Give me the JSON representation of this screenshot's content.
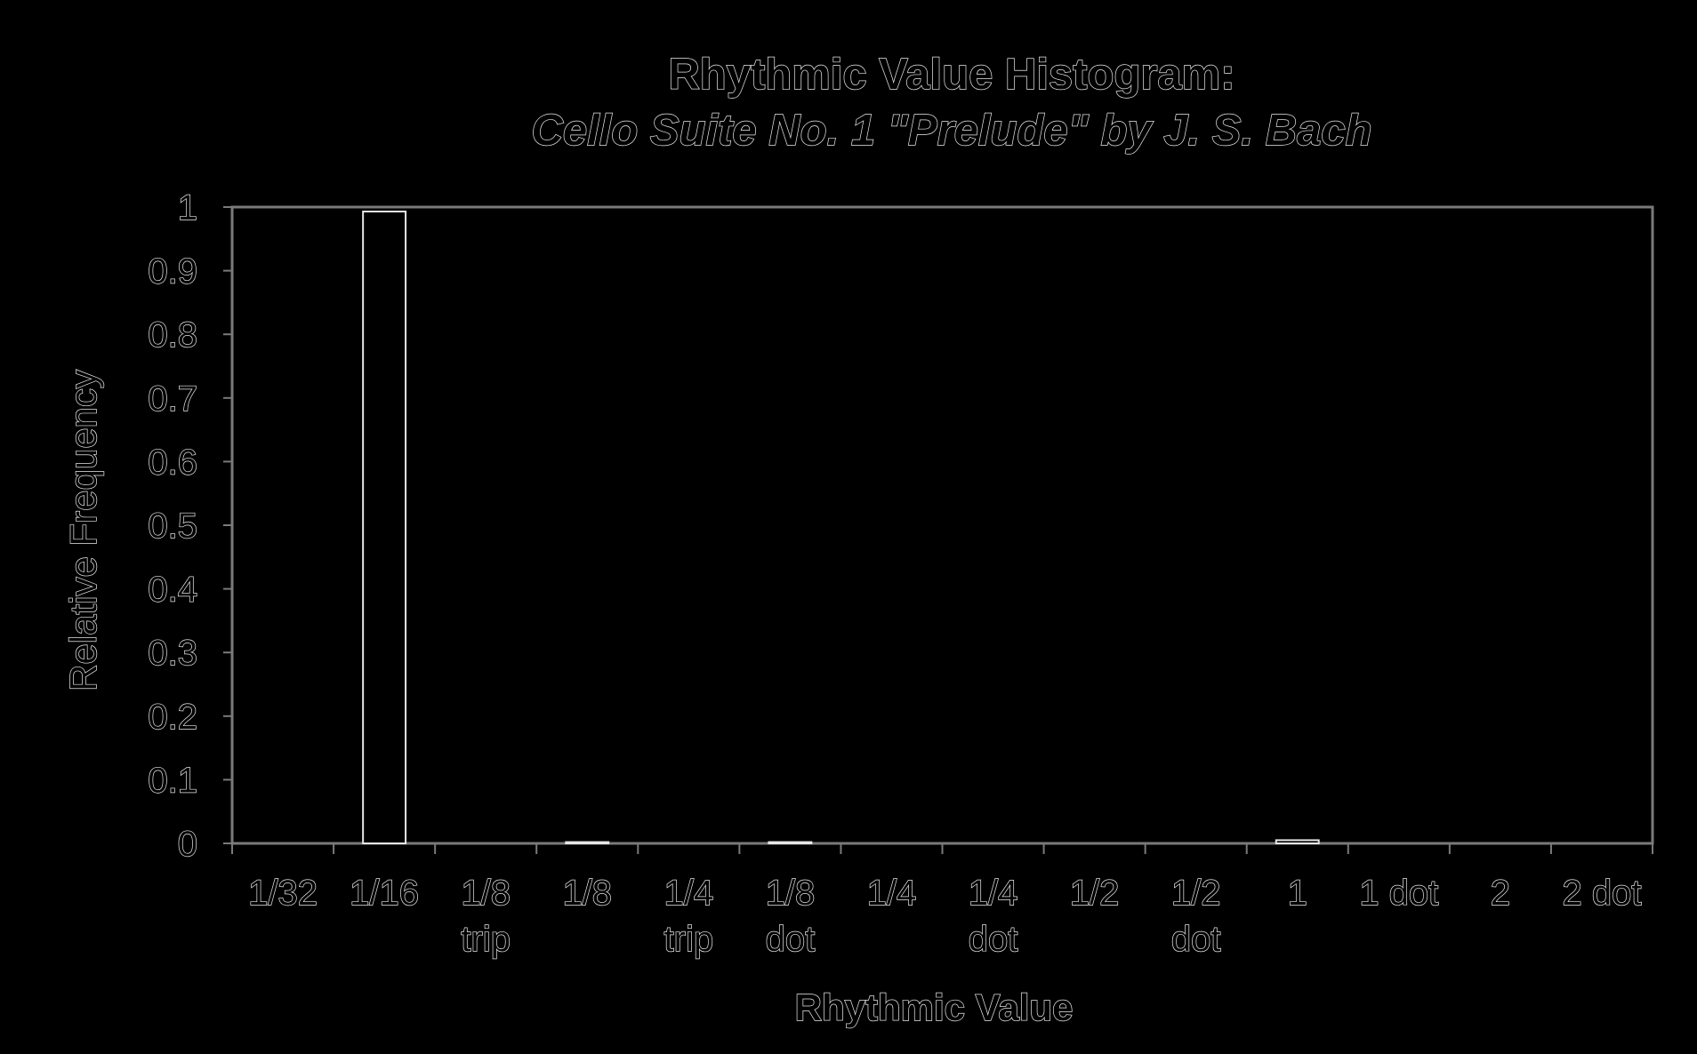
{
  "chart_data": {
    "type": "bar",
    "title": "Rhythmic Value Histogram:",
    "subtitle": "Cello Suite No. 1 \"Prelude\" by J. S. Bach",
    "xlabel": "Rhythmic Value",
    "ylabel": "Relative Frequency",
    "ylim": [
      0,
      1
    ],
    "yticks": [
      "0",
      "0.1",
      "0.2",
      "0.3",
      "0.4",
      "0.5",
      "0.6",
      "0.7",
      "0.8",
      "0.9",
      "1"
    ],
    "categories": [
      [
        "1/32"
      ],
      [
        "1/16"
      ],
      [
        "1/8",
        "trip"
      ],
      [
        "1/8"
      ],
      [
        "1/4",
        "trip"
      ],
      [
        "1/8",
        "dot"
      ],
      [
        "1/4"
      ],
      [
        "1/4",
        "dot"
      ],
      [
        "1/2"
      ],
      [
        "1/2",
        "dot"
      ],
      [
        "1"
      ],
      [
        "1 dot"
      ],
      [
        "2"
      ],
      [
        "2 dot"
      ]
    ],
    "values": [
      0,
      0.993,
      0,
      0.002,
      0,
      0.002,
      0,
      0,
      0,
      0,
      0.005,
      0,
      0,
      0
    ],
    "grid": false,
    "colors": {
      "background": "#000000",
      "line": "#e6e6e6",
      "frame": "#7a7a7a"
    }
  }
}
